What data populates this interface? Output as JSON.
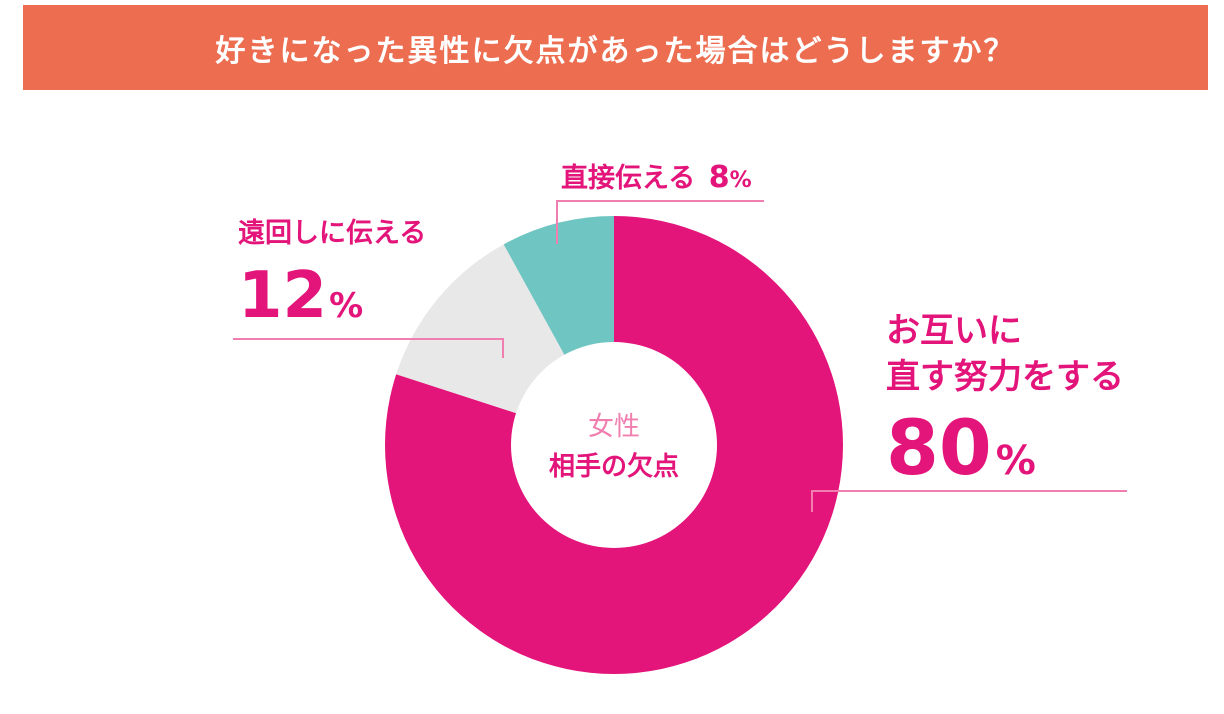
{
  "title": "好きになった異性に欠点があった場合はどうしますか？",
  "center": {
    "line1": "女性",
    "line2": "相手の欠点"
  },
  "colors": {
    "header": "#ec6d50",
    "accent": "#e3147a",
    "gray": "#e8e8e8",
    "teal": "#6ec5c1",
    "leader": "#f07fb0"
  },
  "labels": {
    "main_line1": "お互いに",
    "main_line2": "直す努力をする",
    "main_pct": "80",
    "mid_text": "遠回しに伝える",
    "mid_pct": "12",
    "small_text": "直接伝える",
    "small_pct": "8",
    "pct_sign": "%"
  },
  "chart_data": {
    "type": "pie",
    "title": "好きになった異性に欠点があった場合はどうしますか？",
    "center_label": "女性 相手の欠点",
    "categories": [
      "お互いに直す努力をする",
      "遠回しに伝える",
      "直接伝える"
    ],
    "values": [
      80,
      12,
      8
    ],
    "unit": "%",
    "colors": [
      "#e3147a",
      "#e8e8e8",
      "#6ec5c1"
    ]
  }
}
